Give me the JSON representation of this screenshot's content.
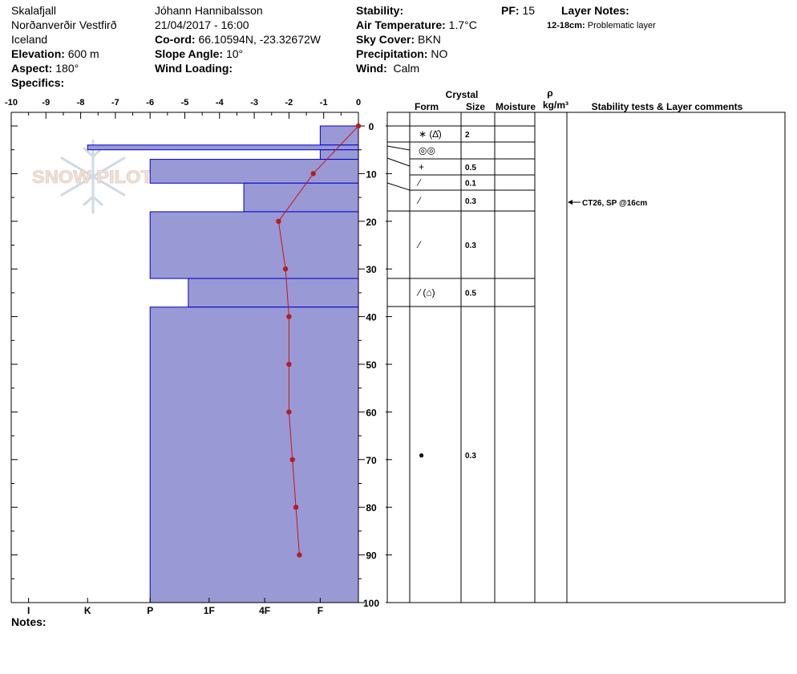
{
  "header": {
    "col1": {
      "location": "Skalafjall",
      "region": "Norðanverðir Vestfirð",
      "country": "Iceland",
      "elevation_label": "Elevation:",
      "elevation": "600 m",
      "aspect_label": "Aspect:",
      "aspect": "180°",
      "specifics_label": "Specifics:"
    },
    "col2": {
      "observer": "Jóhann Hannibalsson",
      "datetime": "21/04/2017 - 16:00",
      "coord_label": "Co-ord:",
      "coord": "66.10594N, -23.32672W",
      "slope_label": "Slope Angle:",
      "slope": "10°",
      "wind_loading_label": "Wind Loading:"
    },
    "col3": {
      "stability_label": "Stability:",
      "air_temp_label": "Air Temperature:",
      "air_temp": "1.7°C",
      "sky_label": "Sky Cover:",
      "sky": "BKN",
      "precip_label": "Precipitation:",
      "precip": "NO",
      "wind_label": "Wind:",
      "wind": "Calm"
    },
    "pf_label": "PF:",
    "pf": "15",
    "layer_notes_label": "Layer Notes:",
    "layer_note_range": "12-18cm:",
    "layer_note_text": "Problematic layer"
  },
  "notes_label": "Notes:",
  "watermark": "SNOW PILOT",
  "table_headers": {
    "crystal": "Crystal",
    "form": "Form",
    "size": "Size",
    "moisture": "Moisture",
    "rho": "ρ",
    "density_unit": "kg/m³",
    "stability": "Stability tests & Layer comments"
  },
  "stability_comment": {
    "depth": 16,
    "text": "CT26, SP @16cm"
  },
  "chart_data": {
    "type": "bar",
    "temperature_axis": {
      "ticks": [
        -10,
        -9,
        -8,
        -7,
        -6,
        -5,
        -4,
        -3,
        -2,
        -1,
        0
      ],
      "range": [
        -10,
        0
      ]
    },
    "depth_axis": {
      "ticks": [
        0,
        10,
        20,
        30,
        40,
        50,
        60,
        70,
        80,
        90,
        100
      ],
      "range": [
        0,
        100
      ]
    },
    "hardness_axis": {
      "labels": [
        "I",
        "K",
        "P",
        "1F",
        "4F",
        "F"
      ],
      "label_temp_positions": [
        -9.5,
        -7.8,
        -6,
        -4.3,
        -2.7,
        -1.1
      ]
    },
    "hardness_layers": [
      {
        "top": 0,
        "bottom": 4,
        "extent": -1.1
      },
      {
        "top": 4,
        "bottom": 5,
        "extent": -7.8
      },
      {
        "top": 5,
        "bottom": 7,
        "extent": -1.1
      },
      {
        "top": 7,
        "bottom": 12,
        "extent": -6
      },
      {
        "top": 12,
        "bottom": 18,
        "extent": -3.3
      },
      {
        "top": 18,
        "bottom": 32,
        "extent": -6
      },
      {
        "top": 32,
        "bottom": 38,
        "extent": -4.9
      },
      {
        "top": 38,
        "bottom": 100,
        "extent": -6
      }
    ],
    "temperature_profile": {
      "depth": [
        0,
        10,
        20,
        30,
        40,
        50,
        60,
        70,
        80,
        90
      ],
      "temp": [
        0,
        -1.3,
        -2.3,
        -2.1,
        -2.0,
        -2.0,
        -2.0,
        -1.9,
        -1.8,
        -1.7
      ]
    },
    "crystal_rows": [
      {
        "top": 0,
        "bottom": 4,
        "form": "∗ (∆̂)",
        "size": "2"
      },
      {
        "top": 4,
        "bottom": 7,
        "form": "◎◎",
        "size": ""
      },
      {
        "top": 7,
        "bottom": 10,
        "form": "+",
        "size": "0.5"
      },
      {
        "top": 10,
        "bottom": 14,
        "form": "⁄",
        "size": "0.1"
      },
      {
        "top": 14,
        "bottom": 18,
        "form": "⁄",
        "size": "0.3"
      },
      {
        "top": 18,
        "bottom": 32,
        "form": "⁄",
        "size": "0.3"
      },
      {
        "top": 32,
        "bottom": 38,
        "form": "⁄ (⌂)",
        "size": "0.5"
      },
      {
        "top": 38,
        "bottom": 100,
        "form": "●",
        "size": "0.3"
      }
    ]
  }
}
